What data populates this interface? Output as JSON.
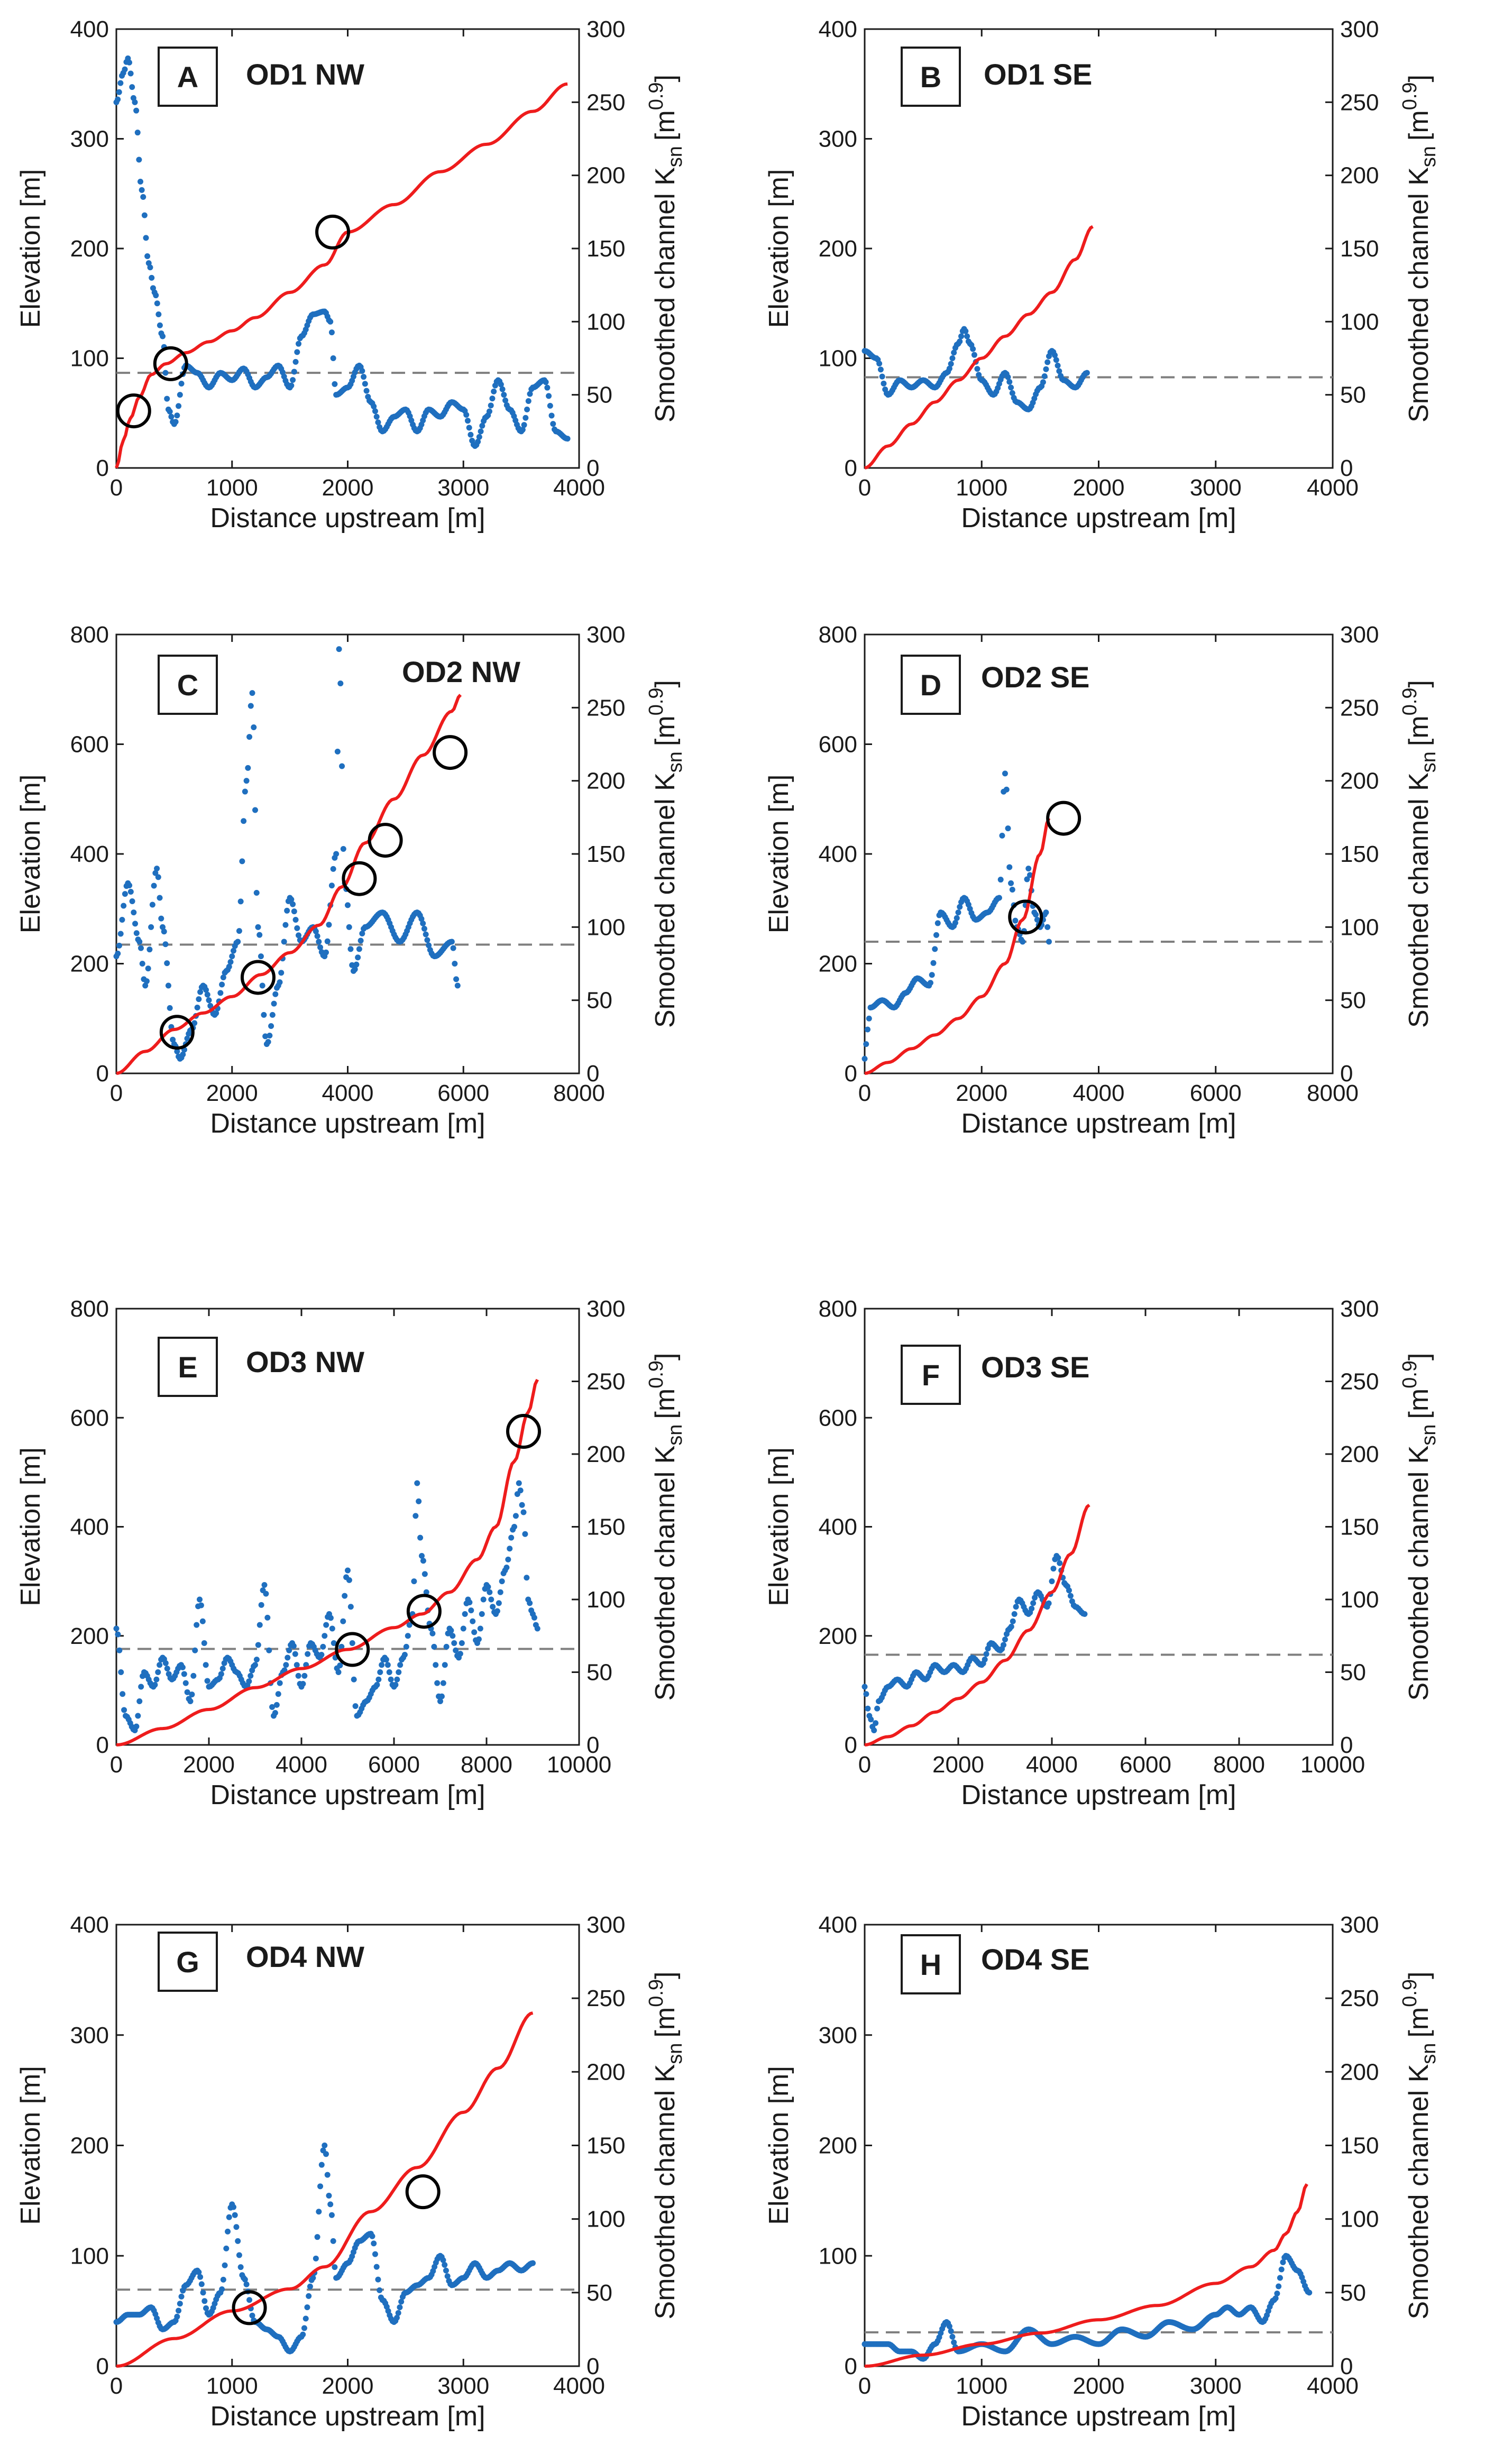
{
  "colors": {
    "elevation": "#ee1c1c",
    "ksn": "#1f6fbf",
    "reference": "#7f7f7f",
    "axis": "#1a1a1a",
    "marker": "#000000"
  },
  "chart_data": [
    {
      "panel": "A",
      "title": "OD1 NW",
      "type": "line",
      "xlabel": "Distance upstream [m]",
      "ylabel": "Elevation [m]",
      "y2label": "Smoothed channel K",
      "y2label_sub": "sn",
      "y2label_unit_open": "[m",
      "y2label_sup": "0.9",
      "y2label_unit_close": "]",
      "xlim": [
        0,
        4000
      ],
      "xticks": [
        0,
        1000,
        2000,
        3000,
        4000
      ],
      "ylim": [
        0,
        400
      ],
      "yticks": [
        0,
        100,
        200,
        300,
        400
      ],
      "y2lim": [
        0,
        300
      ],
      "y2ticks": [
        0,
        50,
        100,
        150,
        200,
        250,
        300
      ],
      "reference_ksn": 65,
      "elevation": {
        "x": [
          0,
          60,
          120,
          200,
          300,
          430,
          600,
          800,
          1000,
          1200,
          1500,
          1800,
          2000,
          2400,
          2800,
          3200,
          3600,
          3900
        ],
        "y": [
          0,
          25,
          45,
          65,
          85,
          95,
          105,
          115,
          125,
          137,
          160,
          185,
          215,
          240,
          270,
          295,
          325,
          350
        ]
      },
      "ksn": {
        "x": [
          0,
          60,
          100,
          160,
          220,
          280,
          330,
          400,
          450,
          500,
          600,
          700,
          800,
          900,
          1000,
          1100,
          1200,
          1300,
          1400,
          1500,
          1600,
          1700,
          1800,
          1850,
          1900,
          2000,
          2100,
          2200,
          2300,
          2400,
          2500,
          2600,
          2700,
          2800,
          2900,
          3000,
          3100,
          3200,
          3300,
          3400,
          3500,
          3600,
          3700,
          3800,
          3900
        ],
        "y": [
          250,
          270,
          280,
          250,
          190,
          140,
          120,
          90,
          40,
          30,
          70,
          65,
          55,
          65,
          60,
          68,
          55,
          62,
          70,
          55,
          90,
          105,
          107,
          100,
          50,
          55,
          70,
          45,
          25,
          35,
          40,
          25,
          40,
          35,
          45,
          40,
          15,
          35,
          60,
          40,
          25,
          55,
          60,
          25,
          20
        ]
      },
      "breaks": [
        {
          "x": 150,
          "y": 52
        },
        {
          "x": 470,
          "y": 95
        },
        {
          "x": 1870,
          "y": 215
        }
      ]
    },
    {
      "panel": "B",
      "title": "OD1 SE",
      "type": "line",
      "xlabel": "Distance upstream [m]",
      "ylabel": "Elevation [m]",
      "y2label": "Smoothed channel K",
      "y2label_sub": "sn",
      "y2label_unit_open": "[m",
      "y2label_sup": "0.9",
      "y2label_unit_close": "]",
      "xlim": [
        0,
        4000
      ],
      "xticks": [
        0,
        1000,
        2000,
        3000,
        4000
      ],
      "ylim": [
        0,
        400
      ],
      "yticks": [
        0,
        100,
        200,
        300,
        400
      ],
      "y2lim": [
        0,
        300
      ],
      "y2ticks": [
        0,
        50,
        100,
        150,
        200,
        250,
        300
      ],
      "reference_ksn": 62,
      "elevation": {
        "x": [
          0,
          200,
          400,
          600,
          800,
          1000,
          1200,
          1400,
          1600,
          1800,
          1950
        ],
        "y": [
          0,
          20,
          40,
          60,
          80,
          100,
          120,
          140,
          160,
          190,
          220
        ]
      },
      "ksn": {
        "x": [
          0,
          100,
          200,
          300,
          400,
          500,
          600,
          700,
          800,
          850,
          900,
          1000,
          1100,
          1200,
          1300,
          1400,
          1500,
          1600,
          1700,
          1800,
          1900
        ],
        "y": [
          80,
          75,
          50,
          60,
          55,
          60,
          55,
          65,
          85,
          95,
          85,
          60,
          50,
          65,
          45,
          40,
          55,
          80,
          60,
          55,
          65
        ]
      },
      "breaks": []
    },
    {
      "panel": "C",
      "title": "OD2 NW",
      "type": "line",
      "xlabel": "Distance upstream [m]",
      "ylabel": "Elevation [m]",
      "y2label": "Smoothed channel K",
      "y2label_sub": "sn",
      "y2label_unit_open": "[m",
      "y2label_sup": "0.9",
      "y2label_unit_close": "]",
      "xlim": [
        0,
        8000
      ],
      "xticks": [
        0,
        2000,
        4000,
        6000,
        8000
      ],
      "ylim": [
        0,
        800
      ],
      "yticks": [
        0,
        200,
        400,
        600,
        800
      ],
      "y2lim": [
        0,
        300
      ],
      "y2ticks": [
        0,
        50,
        100,
        150,
        200,
        250,
        300
      ],
      "reference_ksn": 88,
      "elevation": {
        "x": [
          0,
          500,
          1000,
          1500,
          2000,
          2500,
          3000,
          3500,
          3900,
          4300,
          4800,
          5300,
          5800,
          5950
        ],
        "y": [
          0,
          40,
          80,
          110,
          140,
          180,
          220,
          270,
          340,
          420,
          500,
          580,
          660,
          690
        ]
      },
      "ksn": {
        "x": [
          0,
          200,
          400,
          500,
          700,
          800,
          1000,
          1100,
          1300,
          1500,
          1700,
          1900,
          2100,
          2250,
          2350,
          2450,
          2600,
          2800,
          3000,
          3200,
          3400,
          3600,
          3800,
          3850,
          3950,
          4100,
          4300,
          4600,
          4900,
          5200,
          5500,
          5800,
          5900
        ],
        "y": [
          80,
          130,
          90,
          60,
          140,
          100,
          20,
          10,
          30,
          60,
          40,
          70,
          90,
          200,
          260,
          100,
          20,
          60,
          120,
          90,
          100,
          80,
          150,
          290,
          130,
          70,
          100,
          110,
          90,
          110,
          80,
          90,
          60
        ]
      },
      "breaks": [
        {
          "x": 1050,
          "y": 75
        },
        {
          "x": 2450,
          "y": 175
        },
        {
          "x": 4200,
          "y": 355
        },
        {
          "x": 4650,
          "y": 425
        },
        {
          "x": 5770,
          "y": 585
        }
      ]
    },
    {
      "panel": "D",
      "title": "OD2 SE",
      "type": "line",
      "xlabel": "Distance upstream [m]",
      "ylabel": "Elevation [m]",
      "y2label": "Smoothed channel K",
      "y2label_sub": "sn",
      "y2label_unit_open": "[m",
      "y2label_sup": "0.9",
      "y2label_unit_close": "]",
      "xlim": [
        0,
        8000
      ],
      "xticks": [
        0,
        2000,
        4000,
        6000,
        8000
      ],
      "ylim": [
        0,
        800
      ],
      "yticks": [
        0,
        200,
        400,
        600,
        800
      ],
      "y2lim": [
        0,
        300
      ],
      "y2ticks": [
        0,
        50,
        100,
        150,
        200,
        250,
        300
      ],
      "reference_ksn": 90,
      "elevation": {
        "x": [
          0,
          400,
          800,
          1200,
          1600,
          2000,
          2400,
          2700,
          3000,
          3150
        ],
        "y": [
          0,
          20,
          45,
          70,
          100,
          140,
          200,
          280,
          400,
          465
        ]
      },
      "ksn": {
        "x": [
          0,
          50,
          100,
          300,
          500,
          700,
          900,
          1100,
          1300,
          1500,
          1700,
          1900,
          2100,
          2300,
          2400,
          2500,
          2600,
          2700,
          2800,
          2900,
          3000,
          3100,
          3150
        ],
        "y": [
          10,
          30,
          45,
          50,
          45,
          55,
          65,
          60,
          110,
          100,
          120,
          105,
          110,
          120,
          205,
          130,
          100,
          90,
          140,
          110,
          100,
          110,
          90
        ]
      },
      "breaks": [
        {
          "x": 2750,
          "y": 285
        },
        {
          "x": 3400,
          "y": 465
        }
      ]
    },
    {
      "panel": "E",
      "title": "OD3 NW",
      "type": "line",
      "xlabel": "Distance upstream [m]",
      "ylabel": "Elevation [m]",
      "y2label": "Smoothed channel K",
      "y2label_sub": "sn",
      "y2label_unit_open": "[m",
      "y2label_sup": "0.9",
      "y2label_unit_close": "]",
      "xlim": [
        0,
        10000
      ],
      "xticks": [
        0,
        2000,
        4000,
        6000,
        8000,
        10000
      ],
      "ylim": [
        0,
        800
      ],
      "yticks": [
        0,
        200,
        400,
        600,
        800
      ],
      "y2lim": [
        0,
        300
      ],
      "y2ticks": [
        0,
        50,
        100,
        150,
        200,
        250,
        300
      ],
      "reference_ksn": 66,
      "elevation": {
        "x": [
          0,
          1000,
          2000,
          3000,
          4000,
          5000,
          6000,
          6600,
          7200,
          7800,
          8200,
          8600,
          8900,
          9100
        ],
        "y": [
          0,
          30,
          65,
          105,
          140,
          175,
          215,
          240,
          280,
          340,
          400,
          520,
          610,
          670
        ]
      },
      "ksn": {
        "x": [
          0,
          200,
          400,
          600,
          800,
          1000,
          1200,
          1400,
          1600,
          1800,
          2000,
          2200,
          2400,
          2600,
          2800,
          3000,
          3200,
          3400,
          3600,
          3800,
          4000,
          4200,
          4400,
          4600,
          4800,
          5000,
          5200,
          5400,
          5600,
          5800,
          6000,
          6200,
          6400,
          6500,
          6600,
          6800,
          7000,
          7200,
          7400,
          7600,
          7800,
          8000,
          8200,
          8400,
          8600,
          8700,
          8800,
          8900,
          9000,
          9100
        ],
        "y": [
          80,
          20,
          10,
          50,
          40,
          60,
          45,
          55,
          30,
          100,
          40,
          45,
          60,
          50,
          40,
          55,
          110,
          20,
          50,
          70,
          40,
          70,
          60,
          90,
          50,
          120,
          20,
          30,
          40,
          60,
          40,
          60,
          90,
          180,
          130,
          80,
          30,
          80,
          60,
          100,
          70,
          110,
          90,
          120,
          150,
          180,
          160,
          100,
          90,
          80
        ]
      },
      "breaks": [
        {
          "x": 5100,
          "y": 175
        },
        {
          "x": 6650,
          "y": 245
        },
        {
          "x": 8800,
          "y": 575
        }
      ]
    },
    {
      "panel": "F",
      "title": "OD3 SE",
      "type": "line",
      "xlabel": "Distance upstream [m]",
      "ylabel": "Elevation [m]",
      "y2label": "Smoothed channel K",
      "y2label_sub": "sn",
      "y2label_unit_open": "[m",
      "y2label_sup": "0.9",
      "y2label_unit_close": "]",
      "xlim": [
        0,
        10000
      ],
      "xticks": [
        0,
        2000,
        4000,
        6000,
        8000,
        10000
      ],
      "ylim": [
        0,
        800
      ],
      "yticks": [
        0,
        200,
        400,
        600,
        800
      ],
      "y2lim": [
        0,
        300
      ],
      "y2ticks": [
        0,
        50,
        100,
        150,
        200,
        250,
        300
      ],
      "reference_ksn": 62,
      "elevation": {
        "x": [
          0,
          500,
          1000,
          1500,
          2000,
          2500,
          3000,
          3500,
          4000,
          4400,
          4800
        ],
        "y": [
          0,
          15,
          35,
          60,
          85,
          115,
          155,
          210,
          280,
          350,
          440
        ]
      },
      "ksn": {
        "x": [
          0,
          100,
          200,
          300,
          500,
          700,
          900,
          1100,
          1300,
          1500,
          1700,
          1900,
          2100,
          2300,
          2500,
          2700,
          2900,
          3100,
          3300,
          3500,
          3700,
          3900,
          4100,
          4300,
          4500,
          4700
        ],
        "y": [
          40,
          20,
          10,
          30,
          40,
          45,
          40,
          50,
          45,
          55,
          50,
          55,
          50,
          60,
          55,
          70,
          65,
          80,
          100,
          90,
          105,
          95,
          130,
          110,
          95,
          90
        ]
      },
      "breaks": []
    },
    {
      "panel": "G",
      "title": "OD4 NW",
      "type": "line",
      "xlabel": "Distance upstream [m]",
      "ylabel": "Elevation [m]",
      "y2label": "Smoothed channel K",
      "y2label_sub": "sn",
      "y2label_unit_open": "[m",
      "y2label_sup": "0.9",
      "y2label_unit_close": "]",
      "xlim": [
        0,
        4000
      ],
      "xticks": [
        0,
        1000,
        2000,
        3000,
        4000
      ],
      "ylim": [
        0,
        400
      ],
      "yticks": [
        0,
        100,
        200,
        300,
        400
      ],
      "y2lim": [
        0,
        300
      ],
      "y2ticks": [
        0,
        50,
        100,
        150,
        200,
        250,
        300
      ],
      "reference_ksn": 52,
      "elevation": {
        "x": [
          0,
          500,
          1000,
          1500,
          1800,
          2200,
          2600,
          3000,
          3300,
          3600
        ],
        "y": [
          0,
          25,
          50,
          70,
          90,
          140,
          180,
          230,
          270,
          320
        ]
      },
      "ksn": {
        "x": [
          0,
          100,
          200,
          300,
          400,
          500,
          600,
          700,
          800,
          900,
          1000,
          1100,
          1200,
          1300,
          1400,
          1500,
          1600,
          1700,
          1800,
          1850,
          1900,
          2000,
          2100,
          2200,
          2300,
          2400,
          2500,
          2600,
          2700,
          2800,
          2900,
          3000,
          3100,
          3200,
          3300,
          3400,
          3500,
          3600
        ],
        "y": [
          30,
          35,
          35,
          40,
          25,
          30,
          55,
          65,
          35,
          50,
          110,
          60,
          30,
          25,
          20,
          10,
          20,
          60,
          150,
          110,
          60,
          70,
          85,
          90,
          45,
          30,
          50,
          55,
          60,
          75,
          55,
          60,
          70,
          60,
          65,
          70,
          65,
          70
        ]
      },
      "breaks": [
        {
          "x": 1150,
          "y": 53
        },
        {
          "x": 2650,
          "y": 158
        }
      ]
    },
    {
      "panel": "H",
      "title": "OD4 SE",
      "type": "line",
      "xlabel": "Distance upstream [m]",
      "ylabel": "Elevation [m]",
      "y2label": "Smoothed channel K",
      "y2label_sub": "sn",
      "y2label_unit_open": "[m",
      "y2label_sup": "0.9",
      "y2label_unit_close": "]",
      "xlim": [
        0,
        4000
      ],
      "xticks": [
        0,
        1000,
        2000,
        3000,
        4000
      ],
      "ylim": [
        0,
        400
      ],
      "yticks": [
        0,
        100,
        200,
        300,
        400
      ],
      "y2lim": [
        0,
        300
      ],
      "y2ticks": [
        0,
        50,
        100,
        150,
        200,
        250,
        300
      ],
      "reference_ksn": 23,
      "elevation": {
        "x": [
          0,
          500,
          1000,
          1500,
          2000,
          2500,
          3000,
          3300,
          3500,
          3600,
          3700,
          3780
        ],
        "y": [
          0,
          10,
          20,
          30,
          42,
          55,
          75,
          90,
          105,
          120,
          140,
          165
        ]
      },
      "ksn": {
        "x": [
          0,
          100,
          200,
          300,
          400,
          500,
          600,
          700,
          800,
          1000,
          1200,
          1400,
          1600,
          1800,
          2000,
          2200,
          2400,
          2600,
          2800,
          3000,
          3100,
          3200,
          3300,
          3400,
          3500,
          3600,
          3700,
          3800
        ],
        "y": [
          15,
          15,
          15,
          10,
          10,
          5,
          15,
          30,
          10,
          15,
          10,
          25,
          15,
          20,
          15,
          25,
          20,
          30,
          25,
          35,
          40,
          35,
          40,
          30,
          45,
          75,
          65,
          50
        ]
      },
      "breaks": []
    }
  ]
}
